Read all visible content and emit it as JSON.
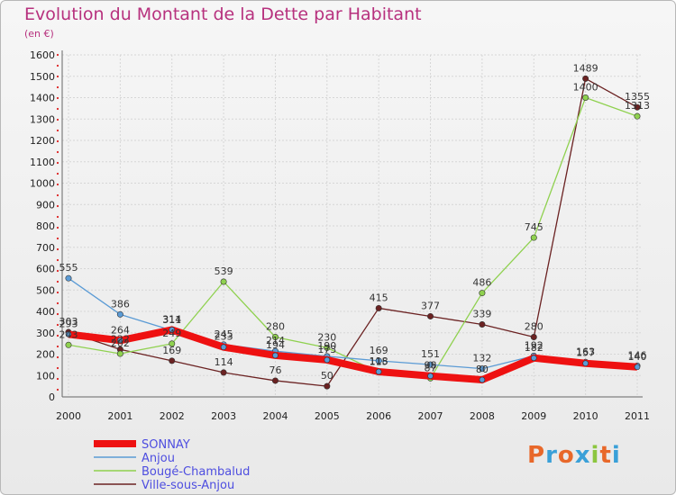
{
  "chart_data": {
    "type": "line",
    "title": "Evolution du Montant de la Dette par Habitant",
    "subtitle": "(en €)",
    "x": [
      "2000",
      "2001",
      "2002",
      "2003",
      "2004",
      "2005",
      "2006",
      "2007",
      "2008",
      "2009",
      "2010",
      "2011"
    ],
    "ylim": [
      0,
      1600
    ],
    "yticks": [
      0,
      100,
      200,
      300,
      400,
      500,
      600,
      700,
      800,
      900,
      1000,
      1100,
      1200,
      1300,
      1400,
      1500,
      1600
    ],
    "grid": true,
    "legend_position": "bottom-left",
    "series": [
      {
        "name": "SONNAY",
        "color": "#ee1111",
        "values": [
          293,
          264,
          314,
          233,
          194,
          173,
          118,
          98,
          80,
          182,
          157,
          140
        ]
      },
      {
        "name": "Anjou",
        "color": "#5b9bd5",
        "values": [
          555,
          386,
          311,
          245,
          214,
          190,
          169,
          151,
          132,
          192,
          163,
          146
        ]
      },
      {
        "name": "Bougé-Chambalud",
        "color": "#8fd14f",
        "values": [
          243,
          202,
          249,
          539,
          280,
          230,
          115,
          87,
          486,
          745,
          1400,
          1313
        ]
      },
      {
        "name": "Ville-sous-Anjou",
        "color": "#6b2222",
        "values": [
          303,
          222,
          169,
          114,
          76,
          50,
          415,
          377,
          339,
          280,
          1489,
          1355
        ]
      }
    ],
    "labels": [
      [
        293,
        264,
        314,
        233,
        194,
        173,
        118,
        98,
        80,
        182,
        157,
        140
      ],
      [
        555,
        386,
        311,
        245,
        214,
        190,
        169,
        151,
        132,
        192,
        163,
        146
      ],
      [
        243,
        202,
        249,
        539,
        280,
        230,
        115,
        87,
        486,
        745,
        1400,
        1313
      ],
      [
        303,
        222,
        169,
        114,
        76,
        50,
        415,
        377,
        339,
        280,
        1489,
        1355
      ]
    ]
  },
  "logo_text": "Proxiti"
}
